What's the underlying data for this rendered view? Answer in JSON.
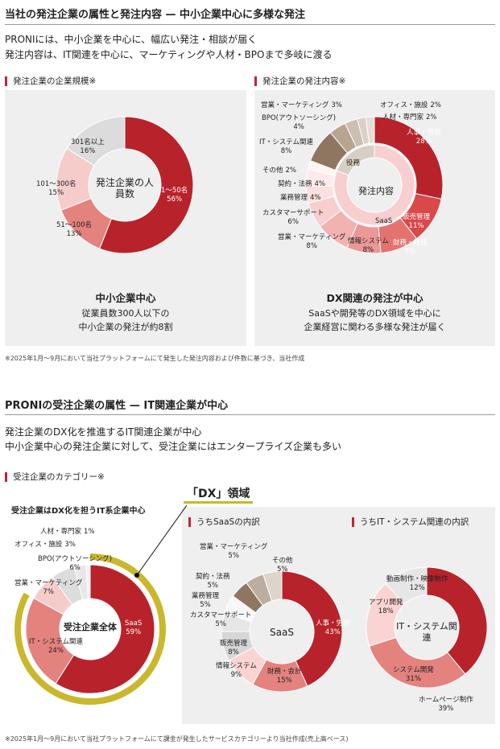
{
  "section1": {
    "title": "当社の発注企業の属性と発注内容 — 中小企業中心に多様な発注",
    "lead1": "PRONIには、中小企業を中心に、幅広い発注・相談が届く",
    "lead2": "発注内容は、IT関連を中心に、マーケティングや人材・BPOまで多岐に渡る",
    "left_sub": "発注企業の企業規模※",
    "right_sub": "発注企業の発注内容※",
    "left_head": "中小企業中心",
    "left_text1": "従業員数300人以下の",
    "left_text2": "中小企業の発注が約8割",
    "right_head": "DX関連の発注が中心",
    "right_text1": "SaaSや開発等のDX領域を中心に",
    "right_text2": "企業経営に関わる多様な発注が届く",
    "footnote": "※2025年1月〜9月において当社プラットフォームにて発生した発注内容および件数に基づき、当社作成"
  },
  "section2": {
    "title": "PRONIの受注企業の属性 — IT関連企業が中心",
    "lead1": "発注企業のDX化を推進するIT関連企業が中心",
    "lead2": "中小企業中心の発注企業に対して、受注企業にはエンタープライズ企業も多い",
    "sub": "受注企業のカテゴリー※",
    "dx": "「DX」領域",
    "left_caption": "受注企業はDX化を担うIT系企業中心",
    "saas_sub": "うちSaaSの内訳",
    "it_sub": "うちIT・システム関連の内訳",
    "footnote": "※2025年1月〜9月において当社プラットフォームにて課金が発生したサービスカテゴリーより当社作成(売上高ベース)"
  },
  "chart_data": [
    {
      "type": "pie",
      "title": "発注企業の人員数",
      "categories": [
        "1〜50名",
        "51〜100名",
        "101〜300名",
        "301名以上"
      ],
      "values": [
        56,
        13,
        15,
        16
      ],
      "colors": [
        "#b8232b",
        "#e4827e",
        "#f6cccb",
        "#dcdcdc"
      ]
    },
    {
      "type": "pie",
      "title": "発注内容",
      "categories": [
        "人事・労務",
        "販売管理",
        "財務・経理",
        "情報システム",
        "営業・マーケティング",
        "カスタマーサポート",
        "業務管理",
        "契約・法務",
        "その他",
        "IT・システム関連",
        "BPO(アウトソーシング)",
        "営業・マーケティング",
        "オフィス・施設",
        "人材・専門家"
      ],
      "values": [
        28,
        11,
        9,
        8,
        8,
        6,
        4,
        4,
        2,
        8,
        4,
        3,
        2,
        2
      ],
      "colors": [
        "#b8232b",
        "#d9484a",
        "#e4736f",
        "#ec9896",
        "#f2b2b0",
        "#f7cfcd",
        "#fae0de",
        "#fcebea",
        "#fdf4f3",
        "#8f7660",
        "#b7a591",
        "#cbbfb1",
        "#d9d1c7",
        "#e4ded6"
      ],
      "inner": {
        "categories": [
          "SaaS",
          "役務"
        ],
        "values": [
          80,
          19
        ],
        "colors": [
          "#f7cfd0",
          "#d8cfc4"
        ]
      }
    },
    {
      "type": "pie",
      "title": "受注企業全体",
      "categories": [
        "SaaS",
        "IT・システム関連",
        "営業・マーケティング",
        "BPO(アウトソーシング)",
        "オフィス・施設",
        "人材・専門家"
      ],
      "values": [
        59,
        24,
        7,
        6,
        3,
        1
      ],
      "colors": [
        "#b8232b",
        "#e4827e",
        "#f6cccb",
        "#dcdcdc",
        "#e8e8e8",
        "#f2f2f2"
      ],
      "highlight_color": "#c9b82c"
    },
    {
      "type": "pie",
      "title": "SaaS",
      "categories": [
        "人事・労務",
        "財務・会計",
        "情報システム",
        "販売管理",
        "カスタマーサポート",
        "業務管理",
        "契約・法務",
        "営業・マーケティング",
        "その他"
      ],
      "values": [
        43,
        15,
        9,
        8,
        5,
        5,
        5,
        5,
        5
      ],
      "colors": [
        "#b8232b",
        "#e4827e",
        "#f9d4d3",
        "#d6d6d6",
        "#e6e6e6",
        "#f7f7f7",
        "#8f7660",
        "#bcae9e",
        "#ddd5cb"
      ]
    },
    {
      "type": "pie",
      "title": "IT・システム関連",
      "categories": [
        "ホームページ制作",
        "システム開発",
        "アプリ開発",
        "動画制作・映像制作"
      ],
      "values": [
        39,
        31,
        18,
        12
      ],
      "colors": [
        "#b8232b",
        "#e4827e",
        "#f9d4d3",
        "#e6e6e6"
      ]
    }
  ]
}
